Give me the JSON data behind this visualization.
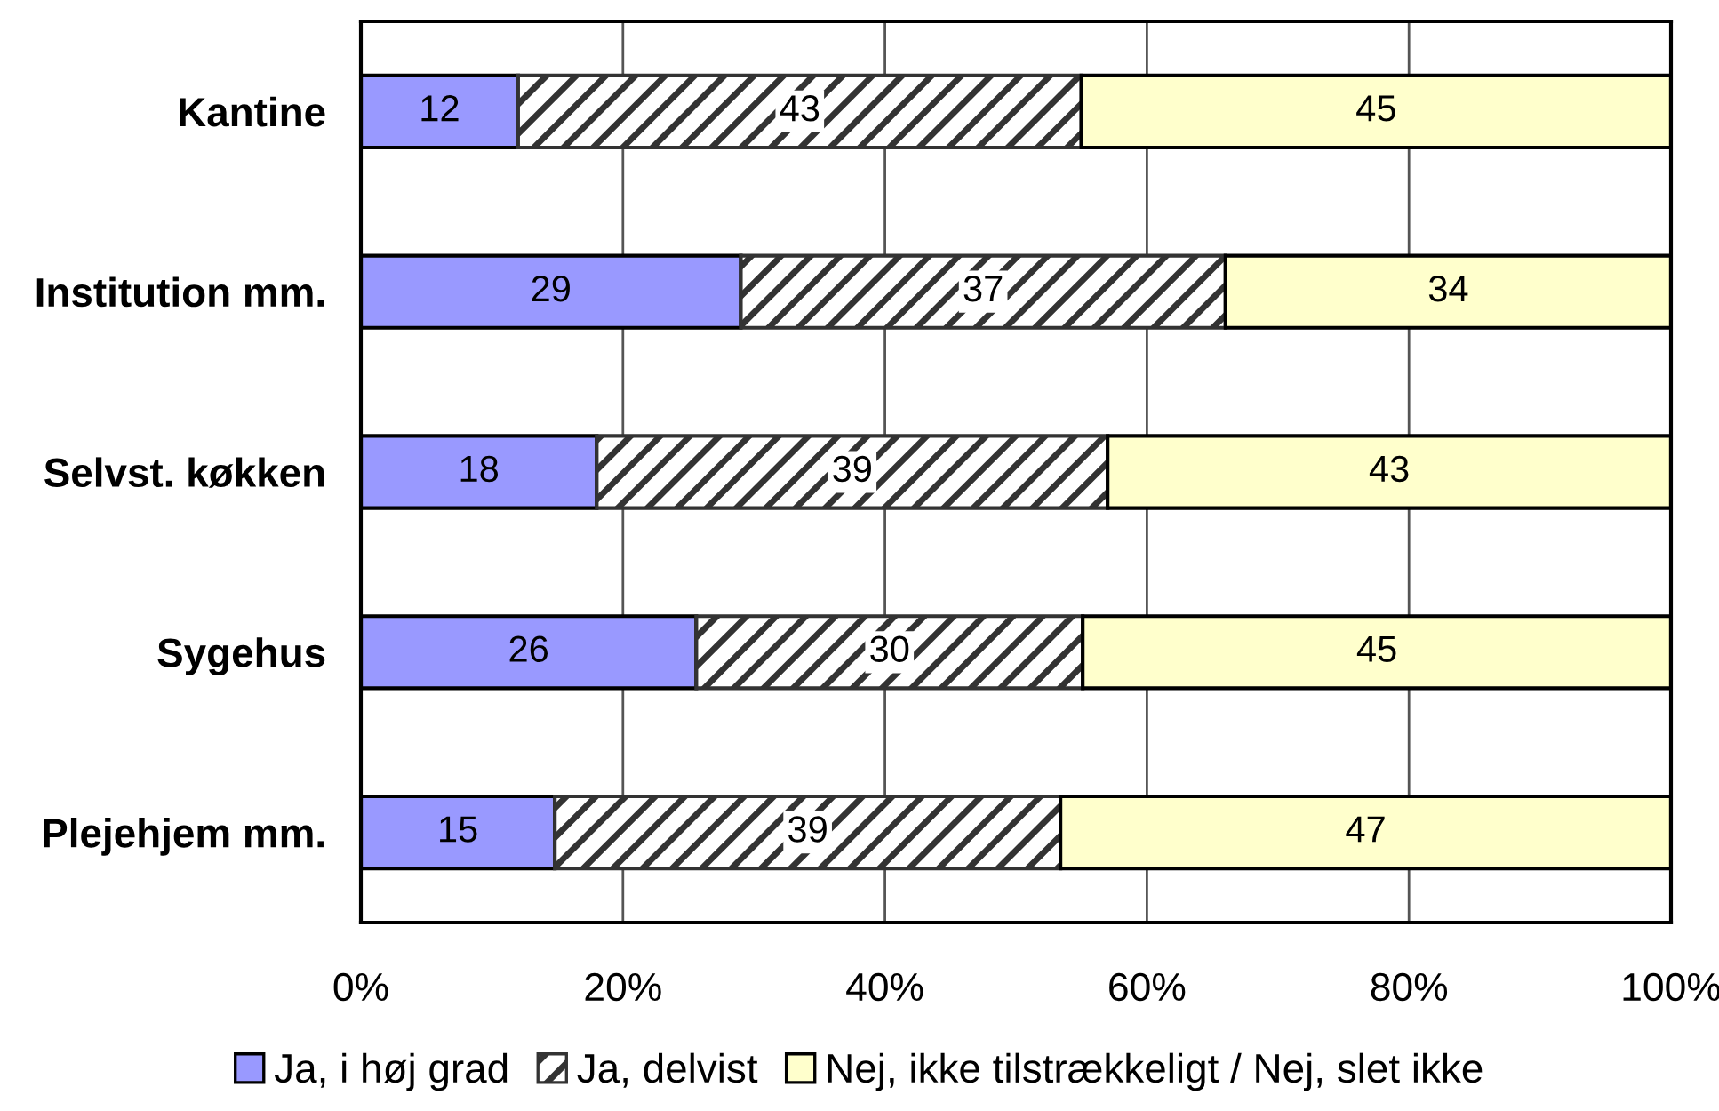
{
  "chart_data": {
    "type": "bar",
    "orientation": "horizontal",
    "stacked": true,
    "categories": [
      "Kantine",
      "Institution mm.",
      "Selvst. køkken",
      "Sygehus",
      "Plejehjem mm."
    ],
    "series": [
      {
        "name": "Ja, i høj grad",
        "color": "#9999ff",
        "values": [
          12,
          29,
          18,
          25.6,
          14.8
        ],
        "value_labels": [
          "12",
          "29",
          "18",
          "26",
          "15"
        ]
      },
      {
        "name": "Ja, delvist",
        "color": "#333333",
        "values": [
          43,
          37,
          39,
          29.5,
          38.6
        ],
        "value_labels": [
          "43",
          "37",
          "39",
          "30",
          "39"
        ]
      },
      {
        "name": "Nej, ikke tilstrækkeligt / Nej, slet ikke",
        "color": "#ffffcc",
        "values": [
          45,
          34,
          43,
          44.9,
          46.6
        ],
        "value_labels": [
          "45",
          "34",
          "43",
          "45",
          "47"
        ]
      }
    ],
    "xlim": [
      0,
      100
    ],
    "xticks": [
      {
        "value": 0,
        "label": "0%"
      },
      {
        "value": 20,
        "label": "20%"
      },
      {
        "value": 40,
        "label": "40%"
      },
      {
        "value": 60,
        "label": "60%"
      },
      {
        "value": 80,
        "label": "80%"
      },
      {
        "value": 100,
        "label": "100%"
      }
    ],
    "grid": "x",
    "legend": "bottom"
  }
}
